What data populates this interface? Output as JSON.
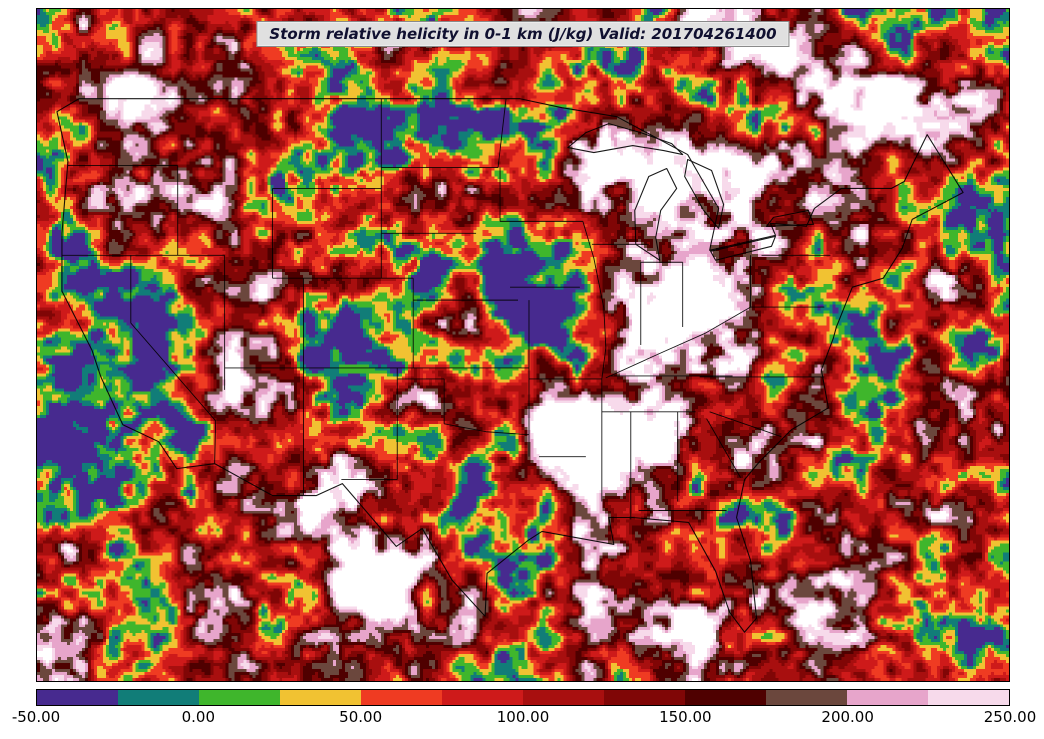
{
  "title": {
    "text": "Storm relative helicity in 0-1 km (J/kg) Valid: 201704261400"
  },
  "map": {
    "field": "Storm relative helicity in 0-1 km",
    "units": "J/kg",
    "valid": "201704261400"
  },
  "colorbar": {
    "min": -50,
    "max": 250,
    "band_width": 25,
    "tick_labels": [
      "-50.00",
      "0.00",
      "50.00",
      "100.00",
      "150.00",
      "200.00",
      "250.00"
    ],
    "band_colors": [
      "#472a8f",
      "#117d78",
      "#3fb62c",
      "#f1c232",
      "#ef3b22",
      "#ce1a1a",
      "#a80f0f",
      "#800606",
      "#4f0000",
      "#6b473d",
      "#e7a5cb",
      "#f7daeb"
    ],
    "over_color": "#ffffff"
  }
}
